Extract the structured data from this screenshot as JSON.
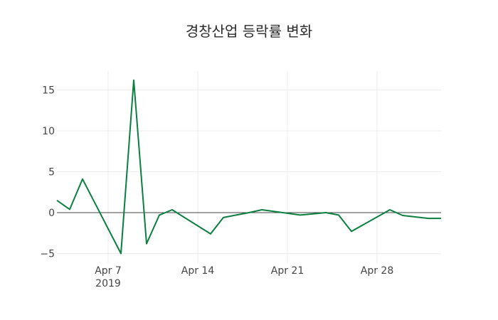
{
  "title": "경창산업 등락률 변화",
  "chart_data": {
    "type": "line",
    "title": "경창산업 등락률 변화",
    "xlabel": "",
    "ylabel": "",
    "ylim": [
      -5.8,
      17.2
    ],
    "grid": true,
    "legend": "none",
    "x_tick_labels": [
      "Apr 7\n2019",
      "Apr 14",
      "Apr 21",
      "Apr 28"
    ],
    "y_tick_labels": [
      "−5",
      "0",
      "5",
      "10",
      "15"
    ],
    "series": [
      {
        "name": "등락률",
        "color": "#0b7f3f",
        "x": [
          "2019-04-03",
          "2019-04-04",
          "2019-04-05",
          "2019-04-08",
          "2019-04-09",
          "2019-04-10",
          "2019-04-11",
          "2019-04-12",
          "2019-04-15",
          "2019-04-16",
          "2019-04-17",
          "2019-04-18",
          "2019-04-19",
          "2019-04-22",
          "2019-04-23",
          "2019-04-24",
          "2019-04-25",
          "2019-04-26",
          "2019-04-29",
          "2019-04-30",
          "2019-05-02",
          "2019-05-03"
        ],
        "values": [
          1.5,
          0.4,
          4.1,
          -5.0,
          16.2,
          -3.8,
          -0.3,
          0.35,
          -2.6,
          -0.6,
          -0.3,
          0.0,
          0.35,
          -0.3,
          -0.15,
          0.0,
          -0.3,
          -2.3,
          0.35,
          -0.35,
          -0.7,
          -0.7
        ]
      }
    ]
  },
  "axis": {
    "x_ticks": [
      {
        "label": "Apr 7",
        "sub": "2019",
        "date": "2019-04-07"
      },
      {
        "label": "Apr 14",
        "sub": "",
        "date": "2019-04-14"
      },
      {
        "label": "Apr 21",
        "sub": "",
        "date": "2019-04-21"
      },
      {
        "label": "Apr 28",
        "sub": "",
        "date": "2019-04-28"
      }
    ],
    "y_ticks": [
      {
        "label": "15",
        "value": 15
      },
      {
        "label": "10",
        "value": 10
      },
      {
        "label": "5",
        "value": 5
      },
      {
        "label": "0",
        "value": 0
      },
      {
        "label": "−5",
        "value": -5
      }
    ]
  }
}
